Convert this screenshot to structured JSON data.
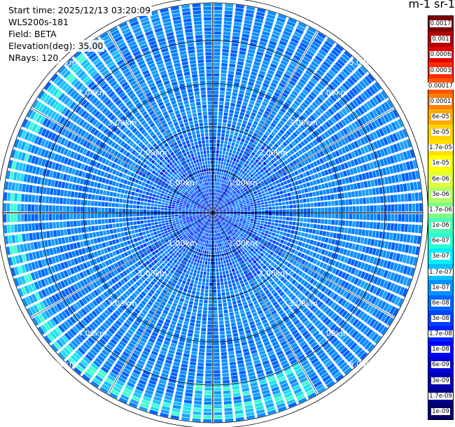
{
  "info": {
    "start_time": "Start time: 2025/12/13 03:20:09",
    "instrument": "WLS200s-181",
    "field": "Field: BETA",
    "elevation": "Elevation(deg): 35.00",
    "nrays": "NRays: 120"
  },
  "colorbar": {
    "title": "m-1 sr-1",
    "labels": [
      "0.0017",
      "0.001",
      "0.0006",
      "0.0003",
      "0.00017",
      "0.0001",
      "6e-05",
      "3e-05",
      "1.7e-05",
      "1e-05",
      "6e-06",
      "3e-06",
      "1.7e-06",
      "1e-06",
      "6e-07",
      "3e-07",
      "1.7e-07",
      "1e-07",
      "6e-08",
      "3e-08",
      "1.7e-08",
      "1e-08",
      "6e-09",
      "3e-09",
      "1.7e-09",
      "1e-09"
    ],
    "colors": [
      "#7f0000",
      "#b30000",
      "#e60000",
      "#ff2a00",
      "#ff5500",
      "#ff7f00",
      "#ffaa00",
      "#ffd400",
      "#ffe000",
      "#ffff00",
      "#e0ff33",
      "#b3ff66",
      "#80ff80",
      "#4dffb3",
      "#26ffd4",
      "#00f0ff",
      "#00c0ff",
      "#0090ff",
      "#0066ff",
      "#0040ff",
      "#0020ff",
      "#0000ff",
      "#0000d4",
      "#0000b0",
      "#00008b",
      "#000066"
    ]
  },
  "chart_data": {
    "type": "ppi",
    "field": "BETA",
    "elevation_deg": 35.0,
    "n_rays": 120,
    "range_rings_km": [
      1.0,
      2.0,
      3.0,
      4.0,
      5.0
    ],
    "ring_labels": [
      "1.00km",
      "2.00km",
      "3.00km",
      "4.00km",
      "5.00km"
    ],
    "max_range_km": 5.8,
    "unit": "m-1 sr-1",
    "grid": true
  }
}
